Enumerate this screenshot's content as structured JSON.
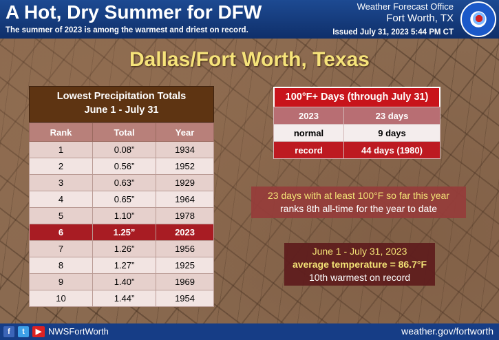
{
  "header": {
    "title": "A Hot, Dry Summer for DFW",
    "subtitle": "The summer of 2023 is among the warmest and driest on record.",
    "office": "Weather Forecast Office",
    "city": "Fort Worth, TX",
    "issued": "Issued July 31, 2023 5:44 PM CT",
    "logo": "noaa-nws-logo"
  },
  "location_title": "Dallas/Fort Worth, Texas",
  "precip_table": {
    "title_line1": "Lowest Precipitation Totals",
    "title_line2": "June 1 - July 31",
    "headers": [
      "Rank",
      "Total",
      "Year"
    ],
    "rows": [
      [
        "1",
        "0.08”",
        "1934"
      ],
      [
        "2",
        "0.56”",
        "1952"
      ],
      [
        "3",
        "0.63”",
        "1929"
      ],
      [
        "4",
        "0.65”",
        "1964"
      ],
      [
        "5",
        "1.10”",
        "1978"
      ],
      [
        "6",
        "1.25”",
        "2023"
      ],
      [
        "7",
        "1.26”",
        "1956"
      ],
      [
        "8",
        "1.27”",
        "1925"
      ],
      [
        "9",
        "1.40”",
        "1969"
      ],
      [
        "10",
        "1.44”",
        "1954"
      ]
    ],
    "highlight_row_index": 5
  },
  "hot_days": {
    "title": "100°F+ Days (through July 31)",
    "rows": [
      [
        "2023",
        "23 days"
      ],
      [
        "normal",
        "9 days"
      ],
      [
        "record",
        "44 days (1980)"
      ]
    ]
  },
  "info1": {
    "line1": "23 days with at least 100°F so far this year",
    "line2": "ranks 8th all-time for the year to date"
  },
  "info2": {
    "line1": "June 1 - July 31, 2023",
    "line2": "average temperature = 86.7°F",
    "line3": "10th warmest on record"
  },
  "footer": {
    "icons": [
      "facebook-icon",
      "twitter-icon",
      "youtube-icon"
    ],
    "handle": "NWSFortWorth",
    "website": "weather.gov/fortworth"
  },
  "colors": {
    "header_bg": "#1d4a92",
    "title_yellow": "#f6e37a",
    "highlight_red": "#a81c23",
    "table_header_brown": "#5e3412"
  }
}
